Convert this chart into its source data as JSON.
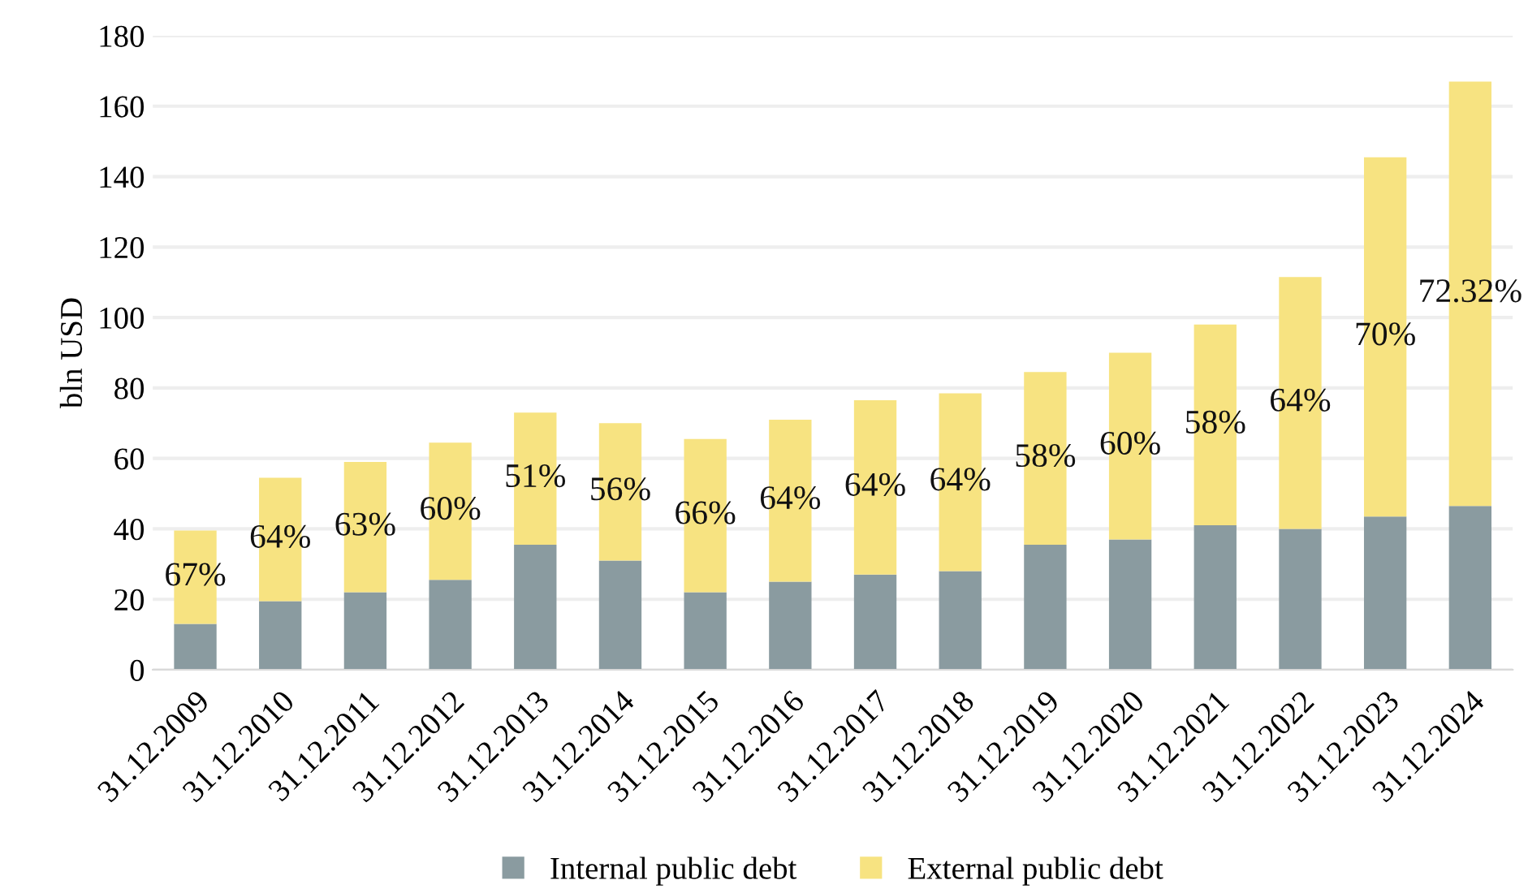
{
  "chart_data": {
    "type": "bar",
    "stacked": true,
    "ylabel": "bln USD",
    "ylim": [
      0,
      180
    ],
    "yticks": [
      0,
      20,
      40,
      60,
      80,
      100,
      120,
      140,
      160,
      180
    ],
    "grid": "y",
    "legend": "bottom",
    "categories": [
      "31.12.2009",
      "31.12.2010",
      "31.12.2011",
      "31.12.2012",
      "31.12.2013",
      "31.12.2014",
      "31.12.2015",
      "31.12.2016",
      "31.12.2017",
      "31.12.2018",
      "31.12.2019",
      "31.12.2020",
      "31.12.2021",
      "31.12.2022",
      "31.12.2023",
      "31.12.2024"
    ],
    "series": [
      {
        "name": "Internal public debt",
        "color": "#8a9ba0",
        "values": [
          13,
          19.5,
          22,
          25.5,
          35.5,
          31,
          22,
          25,
          27,
          28,
          35.5,
          37,
          41,
          40,
          43.5,
          46.5
        ]
      },
      {
        "name": "External public debt",
        "color": "#f7e381",
        "values": [
          26.5,
          35,
          37,
          39,
          37.5,
          39,
          43.5,
          46,
          49.5,
          50.5,
          49,
          53,
          57,
          71.5,
          102,
          120.5
        ]
      }
    ],
    "annotations": [
      "67%",
      "64%",
      "63%",
      "60%",
      "51%",
      "56%",
      "66%",
      "64%",
      "64%",
      "64%",
      "58%",
      "60%",
      "58%",
      "64%",
      "70%",
      "72.32%"
    ]
  }
}
